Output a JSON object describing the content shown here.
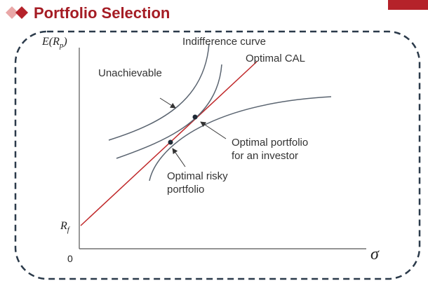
{
  "header": {
    "title": "Portfolio Selection"
  },
  "diagram": {
    "y_axis_label": {
      "base": "E(R",
      "sub": "p",
      "close": ")"
    },
    "x_axis_label": "σ",
    "origin_label": "0",
    "rf_label": {
      "base": "R",
      "sub": "f"
    },
    "indifference_label": "Indifference curve",
    "cal_label": "Optimal CAL",
    "unachievable_label": "Unachievable",
    "optimal_portfolio_label": [
      "Optimal portfolio",
      "for an investor"
    ],
    "optimal_risky_label": [
      "Optimal risky",
      "portfolio"
    ]
  }
}
